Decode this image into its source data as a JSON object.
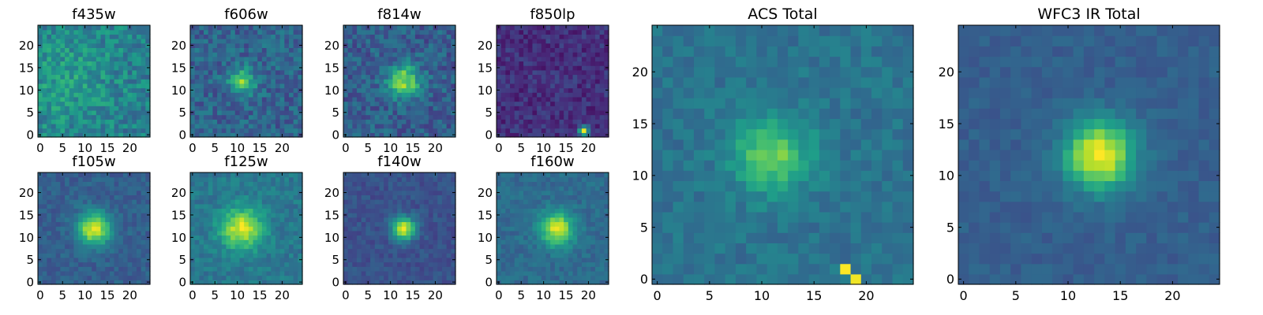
{
  "chart_data": [
    {
      "type": "heatmap",
      "title": "f435w",
      "colormap": "viridis",
      "grid": false,
      "xlim": [
        0,
        25
      ],
      "ylim": [
        0,
        25
      ],
      "xticks": [
        "0",
        "5",
        "10",
        "15",
        "20"
      ],
      "yticks": [
        "0",
        "5",
        "10",
        "15",
        "20"
      ],
      "peak": [
        6,
        12
      ],
      "peak_level": 0.55,
      "spread": 8,
      "noise": 0.28,
      "base": 0.42
    },
    {
      "type": "heatmap",
      "title": "f606w",
      "colormap": "viridis",
      "grid": false,
      "xlim": [
        0,
        25
      ],
      "ylim": [
        0,
        25
      ],
      "xticks": [
        "0",
        "5",
        "10",
        "15",
        "20"
      ],
      "yticks": [
        "0",
        "5",
        "10",
        "15",
        "20"
      ],
      "peak": [
        11,
        12
      ],
      "peak_level": 0.8,
      "spread": 2.0,
      "noise": 0.25,
      "base": 0.32
    },
    {
      "type": "heatmap",
      "title": "f814w",
      "colormap": "viridis",
      "grid": false,
      "xlim": [
        0,
        25
      ],
      "ylim": [
        0,
        25
      ],
      "xticks": [
        "0",
        "5",
        "10",
        "15",
        "20"
      ],
      "yticks": [
        "0",
        "5",
        "10",
        "15",
        "20"
      ],
      "peak": [
        13,
        12
      ],
      "peak_level": 0.85,
      "spread": 2.5,
      "noise": 0.25,
      "base": 0.3
    },
    {
      "type": "heatmap",
      "title": "f850lp",
      "colormap": "viridis",
      "grid": false,
      "xlim": [
        0,
        25
      ],
      "ylim": [
        0,
        25
      ],
      "xticks": [
        "0",
        "5",
        "10",
        "15",
        "20"
      ],
      "yticks": [
        "0",
        "5",
        "10",
        "15",
        "20"
      ],
      "peak": [
        19,
        1
      ],
      "peak_level": 0.95,
      "spread": 0.8,
      "noise": 0.18,
      "base": 0.14
    },
    {
      "type": "heatmap",
      "title": "f105w",
      "colormap": "viridis",
      "grid": false,
      "xlim": [
        0,
        25
      ],
      "ylim": [
        0,
        25
      ],
      "xticks": [
        "0",
        "5",
        "10",
        "15",
        "20"
      ],
      "yticks": [
        "0",
        "5",
        "10",
        "15",
        "20"
      ],
      "peak": [
        12,
        12
      ],
      "peak_level": 0.95,
      "spread": 2.6,
      "noise": 0.14,
      "base": 0.3
    },
    {
      "type": "heatmap",
      "title": "f125w",
      "colormap": "viridis",
      "grid": false,
      "xlim": [
        0,
        25
      ],
      "ylim": [
        0,
        25
      ],
      "xticks": [
        "0",
        "5",
        "10",
        "15",
        "20"
      ],
      "yticks": [
        "0",
        "5",
        "10",
        "15",
        "20"
      ],
      "peak": [
        11,
        12
      ],
      "peak_level": 0.95,
      "spread": 3.2,
      "noise": 0.16,
      "base": 0.4
    },
    {
      "type": "heatmap",
      "title": "f140w",
      "colormap": "viridis",
      "grid": false,
      "xlim": [
        0,
        25
      ],
      "ylim": [
        0,
        25
      ],
      "xticks": [
        "0",
        "5",
        "10",
        "15",
        "20"
      ],
      "yticks": [
        "0",
        "5",
        "10",
        "15",
        "20"
      ],
      "peak": [
        13,
        12
      ],
      "peak_level": 0.95,
      "spread": 1.8,
      "noise": 0.12,
      "base": 0.25
    },
    {
      "type": "heatmap",
      "title": "f160w",
      "colormap": "viridis",
      "grid": false,
      "xlim": [
        0,
        25
      ],
      "ylim": [
        0,
        25
      ],
      "xticks": [
        "0",
        "5",
        "10",
        "15",
        "20"
      ],
      "yticks": [
        "0",
        "5",
        "10",
        "15",
        "20"
      ],
      "peak": [
        13,
        12
      ],
      "peak_level": 0.95,
      "spread": 2.6,
      "noise": 0.13,
      "base": 0.35
    },
    {
      "type": "heatmap",
      "title": "ACS Total",
      "colormap": "viridis",
      "grid": false,
      "xlim": [
        0,
        25
      ],
      "ylim": [
        0,
        25
      ],
      "xticks": [
        "0",
        "5",
        "10",
        "15",
        "20"
      ],
      "yticks": [
        "0",
        "5",
        "10",
        "15",
        "20"
      ],
      "peak": [
        11,
        12
      ],
      "peak_level": 0.78,
      "spread": 2.6,
      "noise": 0.14,
      "base": 0.38,
      "hot_pixels": [
        {
          "x": 18,
          "y": 1,
          "level": 1.0
        },
        {
          "x": 19,
          "y": 0,
          "level": 0.98
        }
      ]
    },
    {
      "type": "heatmap",
      "title": "WFC3 IR Total",
      "colormap": "viridis",
      "grid": false,
      "xlim": [
        0,
        25
      ],
      "ylim": [
        0,
        25
      ],
      "xticks": [
        "0",
        "5",
        "10",
        "15",
        "20"
      ],
      "yticks": [
        "0",
        "5",
        "10",
        "15",
        "20"
      ],
      "peak": [
        13,
        12
      ],
      "peak_level": 1.0,
      "spread": 2.3,
      "noise": 0.09,
      "base": 0.3
    }
  ]
}
